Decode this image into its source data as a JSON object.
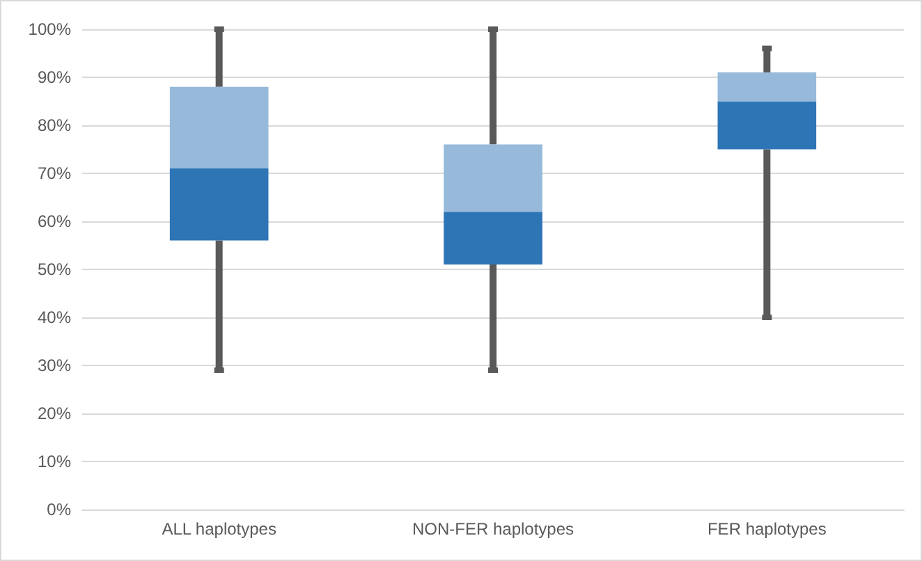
{
  "chart_data": {
    "type": "box",
    "categories": [
      "ALL haplotypes",
      "NON-FER haplotypes",
      "FER haplotypes"
    ],
    "series": [
      {
        "color": "#2e75b6",
        "boxes": [
          {
            "low": 29,
            "q1": 56,
            "median": 71,
            "q3": 88,
            "high": 100
          },
          {
            "low": 29,
            "q1": 51,
            "median": 62,
            "q3": 76,
            "high": 100
          },
          {
            "low": 40,
            "q1": 75,
            "median": 85,
            "q3": 91,
            "high": 96
          }
        ]
      }
    ],
    "ylim": [
      0,
      100
    ],
    "yticks": [
      {
        "value": 0,
        "label": "0%"
      },
      {
        "value": 10,
        "label": "10%"
      },
      {
        "value": 20,
        "label": "20%"
      },
      {
        "value": 30,
        "label": "30%"
      },
      {
        "value": 40,
        "label": "40%"
      },
      {
        "value": 50,
        "label": "50%"
      },
      {
        "value": 60,
        "label": "60%"
      },
      {
        "value": 70,
        "label": "70%"
      },
      {
        "value": 80,
        "label": "80%"
      },
      {
        "value": 90,
        "label": "90%"
      },
      {
        "value": 100,
        "label": "100%"
      }
    ],
    "grid": "y"
  }
}
